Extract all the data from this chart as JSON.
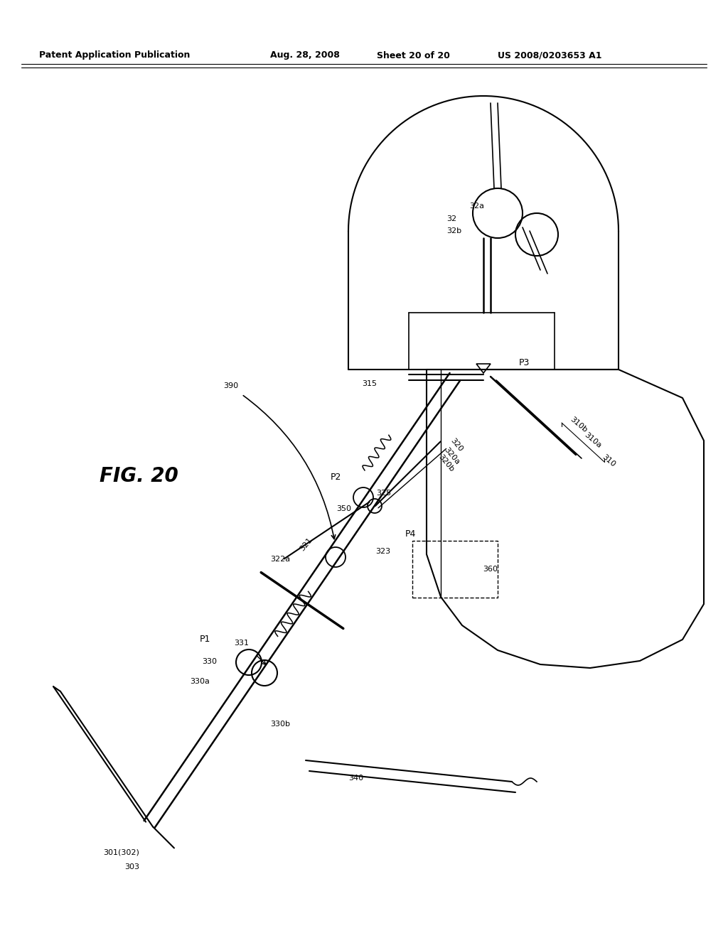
{
  "bg_color": "#ffffff",
  "header_text": "Patent Application Publication",
  "header_date": "Aug. 28, 2008",
  "header_sheet": "Sheet 20 of 20",
  "header_patent": "US 2008/0203653 A1",
  "fig_label": "FIG. 20",
  "line_color": "#000000"
}
